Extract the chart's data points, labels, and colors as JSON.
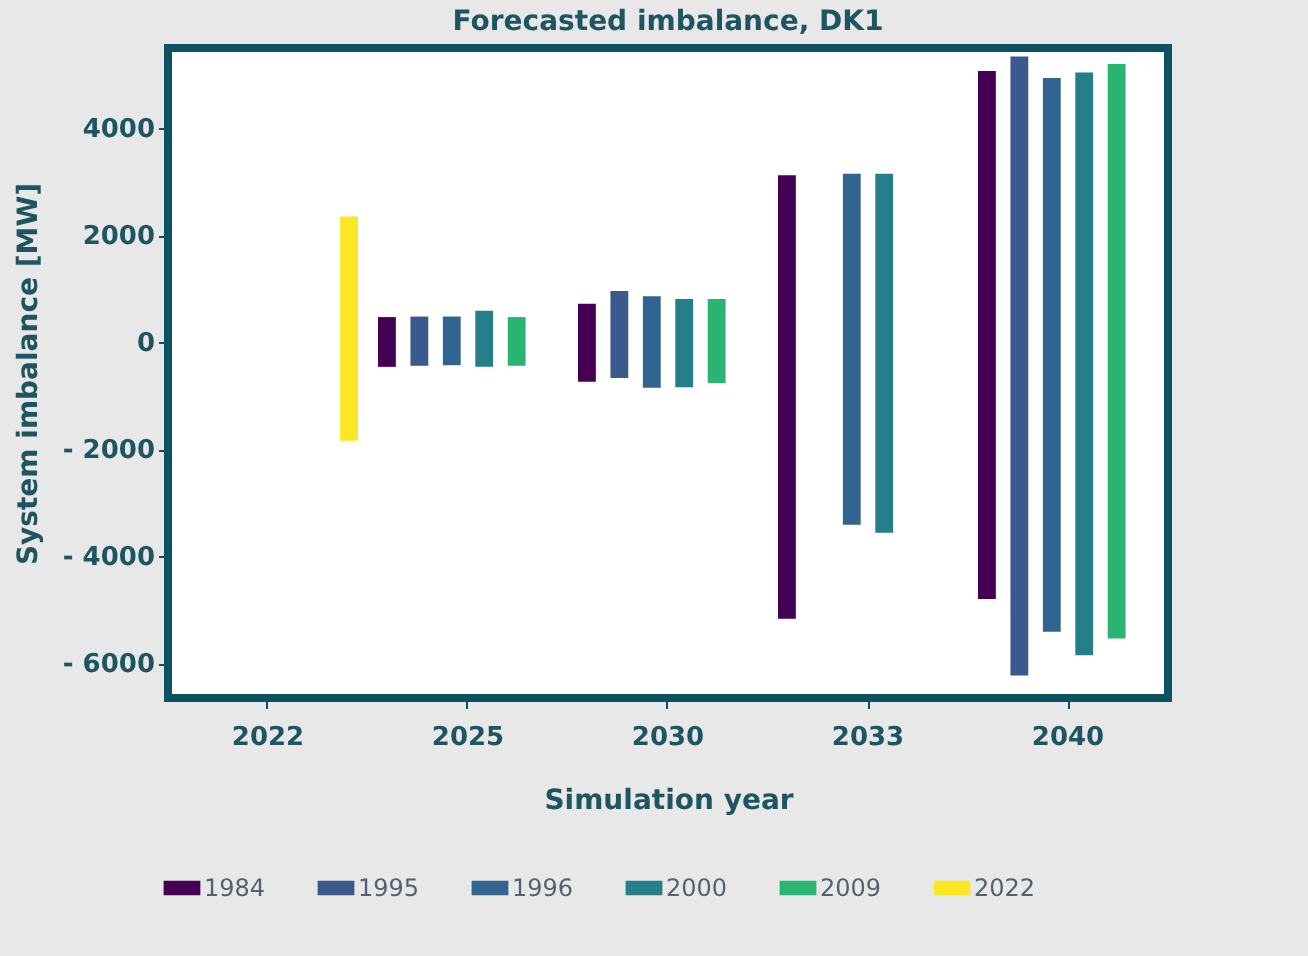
{
  "chart_data": {
    "type": "bar",
    "title": "Forecasted imbalance, DK1",
    "xlabel": "Simulation year",
    "ylabel": "System imbalance [MW]",
    "categories": [
      "2022",
      "2025",
      "2030",
      "2033",
      "2040"
    ],
    "series": [
      {
        "name": "1984",
        "color": "#440154",
        "base": [
          null,
          -460,
          -740,
          -5170,
          -4800
        ],
        "values": [
          null,
          930,
          1460,
          8290,
          9870
        ]
      },
      {
        "name": "1995",
        "color": "#3b5a8c",
        "base": [
          null,
          -440,
          -670,
          null,
          -6230
        ],
        "values": [
          null,
          920,
          1630,
          null,
          11570
        ]
      },
      {
        "name": "1996",
        "color": "#31648e",
        "base": [
          null,
          -430,
          -850,
          -3410,
          -5410
        ],
        "values": [
          null,
          910,
          1710,
          6560,
          10350
        ]
      },
      {
        "name": "2000",
        "color": "#267f88",
        "base": [
          null,
          -460,
          -840,
          -3560,
          -5850
        ],
        "values": [
          null,
          1050,
          1650,
          6710,
          10890
        ]
      },
      {
        "name": "2009",
        "color": "#2ab472",
        "base": [
          null,
          -440,
          -760,
          null,
          -5540
        ],
        "values": [
          null,
          910,
          1570,
          null,
          10740
        ]
      },
      {
        "name": "2022",
        "color": "#fde725",
        "base": [
          -1840,
          null,
          null,
          null,
          null
        ],
        "values": [
          4190,
          null,
          null,
          null,
          null
        ]
      }
    ],
    "ylim": [
      -6650,
      5500
    ],
    "yticks": [
      {
        "value": -6000,
        "label": "- 6000"
      },
      {
        "value": -4000,
        "label": "- 4000"
      },
      {
        "value": -2000,
        "label": "- 2000"
      },
      0,
      2000,
      4000
    ],
    "grid": false,
    "legend": "bottom"
  }
}
